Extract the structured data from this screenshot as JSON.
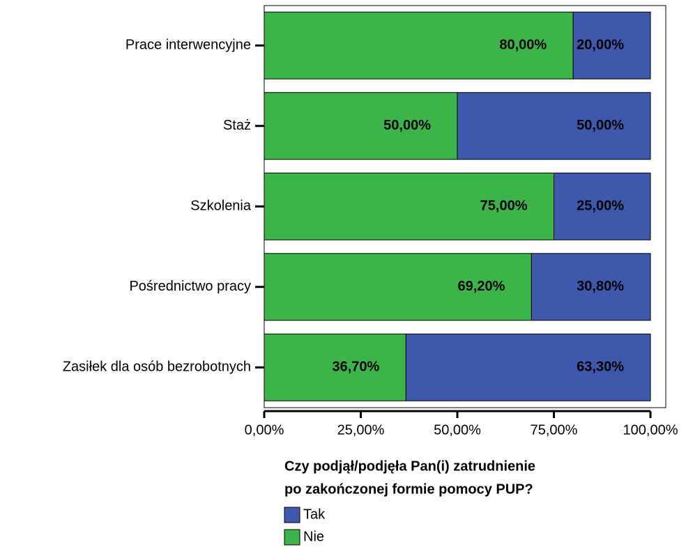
{
  "chart_data": {
    "type": "stacked-barh",
    "categories": [
      "Prace interwencyjne",
      "Staż",
      "Szkolenia",
      "Pośrednictwo pracy",
      "Zasiłek dla osób bezrobotnych"
    ],
    "series": [
      {
        "name": "Tak",
        "color": "#3e58ac",
        "values": [
          20,
          50,
          25,
          30.8,
          63.3
        ],
        "value_labels": [
          "20,00%",
          "50,00%",
          "25,00%",
          "30,80%",
          "63,30%"
        ]
      },
      {
        "name": "Nie",
        "color": "#3cb44a",
        "values": [
          80,
          50,
          75,
          69.2,
          36.7
        ],
        "value_labels": [
          "80,00%",
          "50,00%",
          "75,00%",
          "69,20%",
          "36,70%"
        ]
      }
    ],
    "xlim": [
      0,
      100
    ],
    "xticks": [
      {
        "value": 0,
        "label": "0,00%"
      },
      {
        "value": 25,
        "label": "25,00%"
      },
      {
        "value": 50,
        "label": "50,00%"
      },
      {
        "value": 75,
        "label": "75,00%"
      },
      {
        "value": 100,
        "label": "100,00%"
      }
    ],
    "legend_title": [
      "Czy podjął/podjęła Pan(i) zatrudnienie",
      "po zakończonej formie pomocy PUP?"
    ]
  }
}
